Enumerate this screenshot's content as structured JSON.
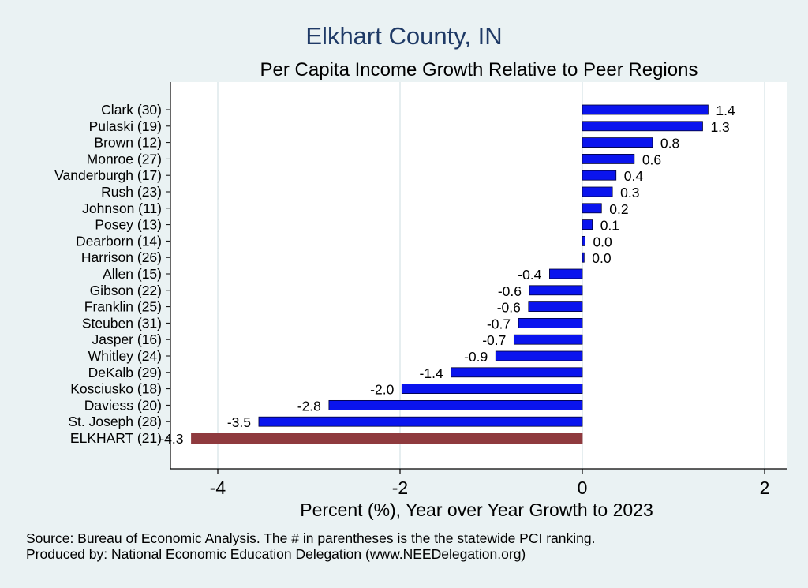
{
  "chart_data": {
    "type": "bar",
    "orientation": "horizontal",
    "title": "Elkhart County, IN",
    "subtitle": "Per Capita Income Growth Relative to Peer Regions",
    "xlabel": "Percent (%), Year over Year Growth to 2023",
    "ylabel": "",
    "xlim": [
      -4.4,
      2.1
    ],
    "xticks": [
      -4,
      -2,
      0,
      2
    ],
    "grid": "vertical",
    "categories": [
      "Clark (30)",
      "Pulaski (19)",
      "Brown (12)",
      "Monroe (27)",
      "Vanderburgh (17)",
      "Rush (23)",
      "Johnson (11)",
      "Posey (13)",
      "Dearborn (14)",
      "Harrison (26)",
      "Allen (15)",
      "Gibson (22)",
      "Franklin (25)",
      "Steuben (31)",
      "Jasper (16)",
      "Whitley (24)",
      "DeKalb (29)",
      "Kosciusko (18)",
      "Daviess (20)",
      "St. Joseph (28)",
      "ELKHART (21)"
    ],
    "values": [
      1.38,
      1.32,
      0.77,
      0.57,
      0.37,
      0.33,
      0.21,
      0.11,
      0.03,
      0.02,
      -0.36,
      -0.58,
      -0.59,
      -0.7,
      -0.75,
      -0.95,
      -1.44,
      -1.98,
      -2.78,
      -3.55,
      -4.29
    ],
    "value_labels": [
      "1.4",
      "1.3",
      "0.8",
      "0.6",
      "0.4",
      "0.3",
      "0.2",
      "0.1",
      "0.0",
      "0.0",
      "-0.4",
      "-0.6",
      "-0.6",
      "-0.7",
      "-0.7",
      "-0.9",
      "-1.4",
      "-2.0",
      "-2.8",
      "-3.5",
      "-4.3"
    ],
    "highlight_index": 20,
    "colors": {
      "bar": "#0a14ee",
      "highlight": "#8f3a3e",
      "grid": "#e6eef0",
      "plot_bg": "#ffffff",
      "page_bg": "#eaf2f3"
    }
  },
  "notes": {
    "source": "Source: Bureau of Economic Analysis. The # in parentheses is the the statewide PCI ranking.",
    "produced": "Produced by: National Economic Education Delegation (www.NEEDelegation.org)"
  }
}
